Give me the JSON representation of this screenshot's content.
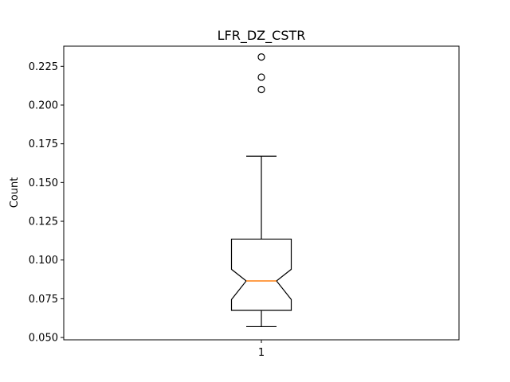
{
  "chart_data": {
    "type": "boxplot",
    "title": "LFR_DZ_CSTR",
    "xlabel": "",
    "ylabel": "Count",
    "ylim": [
      0.0485,
      0.238
    ],
    "yticks": [
      0.05,
      0.075,
      0.1,
      0.125,
      0.15,
      0.175,
      0.2,
      0.225
    ],
    "ytick_labels": [
      "0.050",
      "0.075",
      "0.100",
      "0.125",
      "0.150",
      "0.175",
      "0.200",
      "0.225"
    ],
    "categories": [
      "1"
    ],
    "notch": true,
    "grid": false,
    "boxes": [
      {
        "category": "1",
        "whisker_low": 0.057,
        "q1": 0.0675,
        "notch_low": 0.0745,
        "median": 0.0865,
        "notch_high": 0.094,
        "q3": 0.1135,
        "whisker_high": 0.167,
        "outliers": [
          0.21,
          0.218,
          0.231
        ]
      }
    ],
    "colors": {
      "box": "#000000",
      "median": "#ff7f0e",
      "flier": "#000000"
    }
  }
}
